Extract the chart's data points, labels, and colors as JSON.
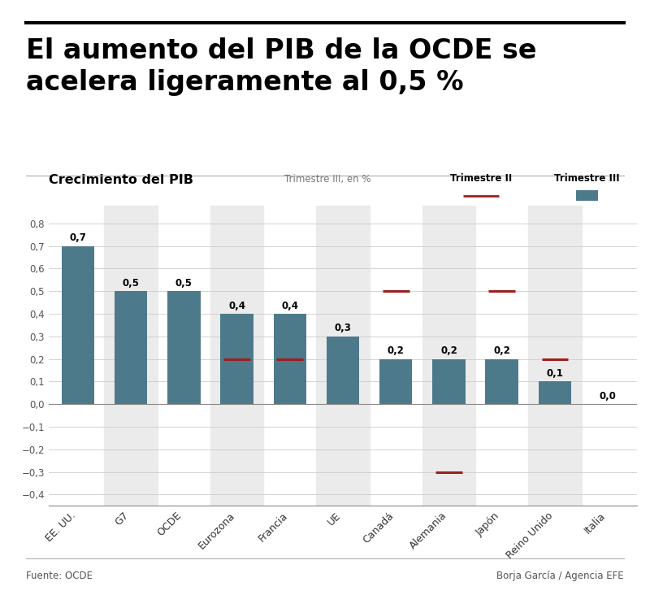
{
  "title_line1": "El aumento del PIB de la OCDE se",
  "title_line2": "acelera ligeramente al 0,5 %",
  "subtitle": "Crecimiento del PIB",
  "subtitle2": "Trimestre III, en %",
  "categories": [
    "EE. UU.",
    "G7",
    "OCDE",
    "Eurozona",
    "Francia",
    "UE",
    "Canadá",
    "Alemania",
    "Japón",
    "Reino Unido",
    "Italia"
  ],
  "q3_values": [
    0.7,
    0.5,
    0.5,
    0.4,
    0.4,
    0.3,
    0.2,
    0.2,
    0.2,
    0.1,
    0.0
  ],
  "q2_values": [
    null,
    null,
    null,
    0.2,
    0.2,
    null,
    0.5,
    -0.3,
    0.5,
    0.2,
    null
  ],
  "bar_color": "#4d7a8a",
  "q2_line_color": "#9b2020",
  "q2_label": "Trimestre II",
  "q3_label": "Trimestre III",
  "panel_color": "#ebebeb",
  "ylabel_values": [
    -0.4,
    -0.3,
    -0.2,
    -0.1,
    0.0,
    0.1,
    0.2,
    0.3,
    0.4,
    0.5,
    0.6,
    0.7,
    0.8
  ],
  "ylim": [
    -0.45,
    0.88
  ],
  "source_left": "Fuente: OCDE",
  "source_right": "Borja García / Agencia EFE"
}
